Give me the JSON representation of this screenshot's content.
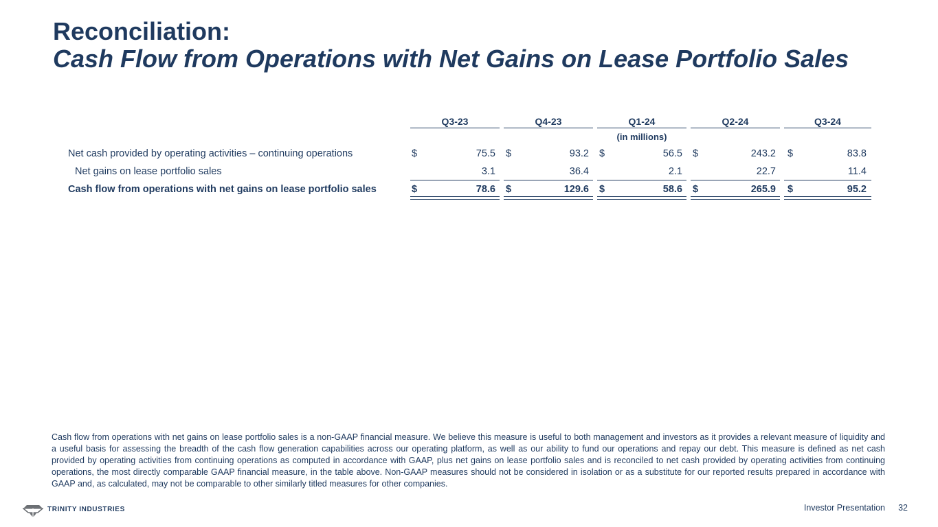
{
  "title": {
    "line1": "Reconciliation:",
    "line2": "Cash Flow from Operations with Net Gains on Lease Portfolio Sales"
  },
  "table": {
    "columns": [
      "Q3-23",
      "Q4-23",
      "Q1-24",
      "Q2-24",
      "Q3-24"
    ],
    "unit_label": "(in millions)",
    "rows": [
      {
        "label": "Net cash provided by operating activities – continuing operations",
        "currency": "$",
        "values": [
          "75.5",
          "93.2",
          "56.5",
          "243.2",
          "83.8"
        ]
      },
      {
        "label": "Net gains on lease portfolio sales",
        "currency": "",
        "values": [
          "3.1",
          "36.4",
          "2.1",
          "22.7",
          "11.4"
        ]
      },
      {
        "label": "Cash flow from operations with net gains on lease portfolio sales",
        "currency": "$",
        "values": [
          "78.6",
          "129.6",
          "58.6",
          "265.9",
          "95.2"
        ]
      }
    ]
  },
  "footnote": "Cash flow from operations with net gains on lease portfolio sales is a non-GAAP financial measure. We believe this measure is useful to both management and investors as it provides a relevant measure of liquidity and a useful basis for assessing the breadth of the cash flow generation capabilities across our operating platform, as well as our ability to fund our operations and repay our debt. This measure is defined as net cash provided by operating activities from continuing operations as computed in accordance with GAAP, plus net gains on lease portfolio sales and is reconciled to net cash provided by operating activities from continuing operations, the most directly comparable GAAP financial measure, in the table above. Non-GAAP measures should not be considered in isolation or as a substitute for our reported results prepared in accordance with GAAP and, as calculated, may not be comparable to other similarly titled measures for other companies.",
  "footer": {
    "logo_text": "TRINITY INDUSTRIES",
    "label": "Investor Presentation",
    "page_number": "32"
  },
  "colors": {
    "text": "#1f3a5f",
    "logo_gray": "#6b6f73"
  },
  "icons": {
    "logo": "trinity-logo-icon"
  }
}
